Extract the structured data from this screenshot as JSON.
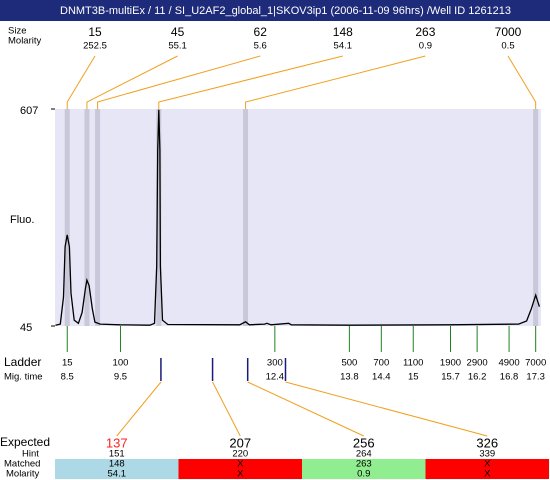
{
  "chart_data": {
    "type": "line",
    "title": "DNMT3B-multiEx / 11 / SI_U2AF2_global_1|SKOV3ip1 (2006-11-09 96hrs) /Well ID 1261213",
    "ylabel": "Fluo.",
    "ylim": [
      45,
      607
    ],
    "yticks": [
      45,
      607
    ],
    "xlim": [
      8.27,
      17.4
    ],
    "plot_color": "#e6e6f6",
    "line_color": "#000000",
    "x": [
      8.28,
      8.37,
      8.43,
      8.46,
      8.5,
      8.54,
      8.57,
      8.63,
      8.71,
      8.78,
      8.84,
      8.87,
      8.91,
      8.97,
      9.02,
      9.12,
      9.49,
      10.05,
      10.14,
      10.18,
      10.2,
      10.22,
      10.24,
      10.25,
      10.29,
      10.39,
      11.74,
      11.85,
      11.92,
      12.21,
      12.25,
      12.33,
      12.66,
      12.71,
      13.8,
      15.67,
      16.98,
      17.13,
      17.22,
      17.3,
      17.37
    ],
    "series": [
      {
        "values": [
          47,
          50,
          120,
          250,
          281,
          250,
          130,
          60,
          52,
          80,
          140,
          164,
          150,
          90,
          55,
          50,
          48,
          47,
          52,
          200,
          500,
          605,
          500,
          200,
          60,
          49,
          48,
          56,
          48,
          50,
          52,
          48,
          52,
          48,
          47,
          48,
          50,
          58,
          90,
          125,
          95
        ]
      }
    ],
    "peaks": {
      "size_label": "Size",
      "molarity_label": "Molarity",
      "band_color": "#c8c8da",
      "link_color": "#f0a020",
      "items": [
        {
          "size": "15",
          "molarity": "252.5",
          "time": 8.5
        },
        {
          "size": "45",
          "molarity": "55.1",
          "time": 8.87
        },
        {
          "size": "62",
          "molarity": "5.6",
          "time": 9.07
        },
        {
          "size": "148",
          "molarity": "54.1",
          "time": 10.22
        },
        {
          "size": "263",
          "molarity": "0.9",
          "time": 11.85
        },
        {
          "size": "7000",
          "molarity": "0.5",
          "time": 17.3
        }
      ]
    },
    "ladder": {
      "label": "Ladder",
      "time_label": "Mig. time",
      "color": "#208020",
      "items": [
        {
          "size": "15",
          "time": 8.5
        },
        {
          "size": "100",
          "time": 9.5
        },
        {
          "size": "300",
          "time": 12.4
        },
        {
          "size": "500",
          "time": 13.8
        },
        {
          "size": "700",
          "time": 14.4
        },
        {
          "size": "1100",
          "time": 15
        },
        {
          "size": "1900",
          "time": 15.7
        },
        {
          "size": "2900",
          "time": 16.2
        },
        {
          "size": "4900",
          "time": 16.8
        },
        {
          "size": "7000",
          "time": 17.3
        }
      ]
    },
    "expected": {
      "label": "Expected",
      "hint_label": "Hint",
      "matched_label": "Matched",
      "molarity_label": "Molarity",
      "mark_color": "#1a1a7a",
      "items": [
        {
          "size": "137",
          "hint": "151",
          "matched": "148",
          "molarity": "54.1",
          "time": 10.26,
          "color": "#add8e6",
          "text_color": "#ff2020"
        },
        {
          "size": "207",
          "hint": "220",
          "matched": "X",
          "molarity": "X",
          "time": 11.23,
          "color": "#ff0000",
          "text_color": "#000000"
        },
        {
          "size": "256",
          "hint": "264",
          "matched": "263",
          "molarity": "0.9",
          "time": 11.89,
          "color": "#90ee90",
          "text_color": "#000000"
        },
        {
          "size": "326",
          "hint": "339",
          "matched": "X",
          "molarity": "X",
          "time": 12.6,
          "color": "#ff0000",
          "text_color": "#000000"
        }
      ]
    }
  }
}
